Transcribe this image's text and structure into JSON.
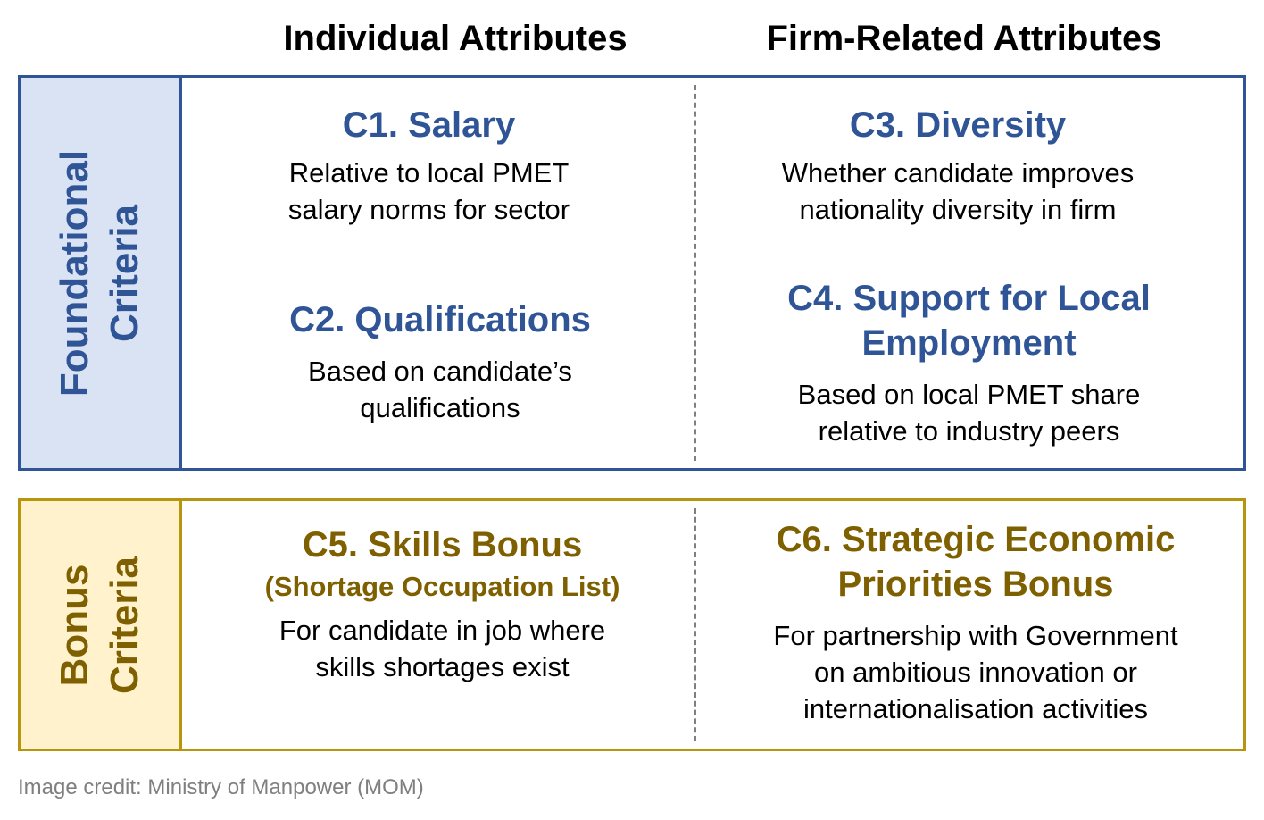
{
  "headers": {
    "individual": "Individual Attributes",
    "firm": "Firm-Related Attributes"
  },
  "foundational": {
    "label_line1": "Foundational",
    "label_line2": "Criteria",
    "c1": {
      "title": "C1. Salary",
      "desc_line1": "Relative to local PMET",
      "desc_line2": "salary norms for sector"
    },
    "c2": {
      "title": "C2. Qualifications",
      "desc_line1": "Based on candidate’s",
      "desc_line2": "qualifications"
    },
    "c3": {
      "title": "C3. Diversity",
      "desc_line1": "Whether candidate improves",
      "desc_line2": "nationality diversity in firm"
    },
    "c4": {
      "title_line1": "C4. Support for Local",
      "title_line2": "Employment",
      "desc_line1": "Based on local PMET share",
      "desc_line2": "relative to industry peers"
    }
  },
  "bonus": {
    "label_line1": "Bonus",
    "label_line2": "Criteria",
    "c5": {
      "title": "C5. Skills Bonus",
      "subtitle": "(Shortage Occupation List)",
      "desc_line1": "For candidate in job where",
      "desc_line2": "skills shortages exist"
    },
    "c6": {
      "title_line1": "C6. Strategic Economic",
      "title_line2": "Priorities Bonus",
      "desc_line1": "For partnership with Government",
      "desc_line2": "on ambitious innovation or",
      "desc_line3": "internationalisation activities"
    }
  },
  "credit": "Image credit: Ministry of Manpower (MOM)",
  "colors": {
    "blue": "#2f5597",
    "gold": "#7f6000",
    "blue_fill": "#dae3f3",
    "gold_fill": "#fff2cc"
  }
}
